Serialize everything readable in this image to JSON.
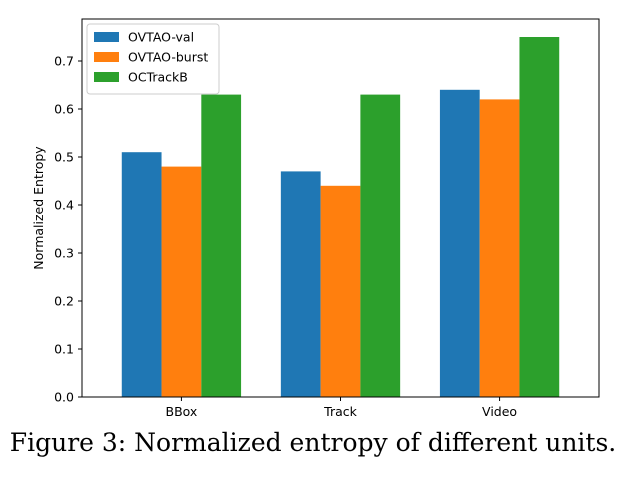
{
  "chart_data": {
    "type": "bar",
    "categories": [
      "BBox",
      "Track",
      "Video"
    ],
    "series": [
      {
        "name": "OVTAO-val",
        "color": "#1f77b4",
        "values": [
          0.51,
          0.47,
          0.64
        ]
      },
      {
        "name": "OVTAO-burst",
        "color": "#ff7f0e",
        "values": [
          0.48,
          0.44,
          0.62
        ]
      },
      {
        "name": "OCTrackB",
        "color": "#2ca02c",
        "values": [
          0.63,
          0.63,
          0.75
        ]
      }
    ],
    "xlabel": "",
    "ylabel": "Normalized Entropy",
    "ylim": [
      0,
      0.7875
    ],
    "yticks": [
      "0.0",
      "0.1",
      "0.2",
      "0.3",
      "0.4",
      "0.5",
      "0.6",
      "0.7"
    ],
    "legend": "top-left",
    "grid": false
  },
  "caption": "Figure 3: Normalized entropy of different units."
}
